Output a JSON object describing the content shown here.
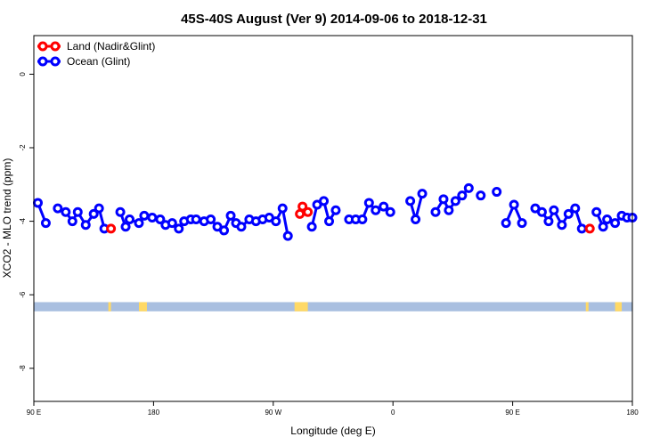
{
  "chart_data": {
    "type": "line",
    "title": "45S-40S August (Ver 9)   2014-09-06 to 2018-12-31",
    "xlabel": "Longitude (deg E)",
    "ylabel": "XCO2 - MLO trend (ppm)",
    "xlim": [
      0,
      450
    ],
    "ylim": [
      -8.9,
      1.05
    ],
    "x_ticks": [
      {
        "value": 0,
        "label": "90 E"
      },
      {
        "value": 90,
        "label": "180"
      },
      {
        "value": 180,
        "label": "90 W"
      },
      {
        "value": 270,
        "label": "0"
      },
      {
        "value": 360,
        "label": "90 E"
      },
      {
        "value": 450,
        "label": "180"
      }
    ],
    "y_ticks": [
      {
        "value": 0,
        "label": "0"
      },
      {
        "value": -2,
        "label": "-2"
      },
      {
        "value": -4,
        "label": "-4"
      },
      {
        "value": -6,
        "label": "-6"
      },
      {
        "value": -8,
        "label": "-8"
      }
    ],
    "legend": {
      "position": "top-left"
    },
    "colors": {
      "land": "#ff0000",
      "ocean": "#0000ff",
      "ocean_band": "#a9bfe0",
      "land_band": "#ffd966"
    },
    "surface_band": {
      "y_top": -6.2,
      "y_bottom": -6.45
    },
    "land_band_segments": [
      [
        56,
        58
      ],
      [
        79,
        85
      ],
      [
        196,
        206
      ],
      [
        415,
        417
      ],
      [
        437,
        442
      ]
    ],
    "series": [
      {
        "name": "Land (Nadir&Glint)",
        "key": "land",
        "segments": [
          [
            [
              58,
              -4.2
            ]
          ],
          [
            [
              200,
              -3.8
            ],
            [
              202,
              -3.6
            ],
            [
              206,
              -3.75
            ]
          ],
          [
            [
              418,
              -4.2
            ]
          ]
        ]
      },
      {
        "name": "Ocean (Glint)",
        "key": "ocean",
        "segments": [
          [
            [
              3,
              -3.5
            ],
            [
              9,
              -4.05
            ]
          ],
          [
            [
              18,
              -3.65
            ],
            [
              24,
              -3.75
            ],
            [
              29,
              -4.0
            ],
            [
              33,
              -3.75
            ],
            [
              39,
              -4.1
            ],
            [
              45,
              -3.8
            ],
            [
              49,
              -3.65
            ],
            [
              53,
              -4.2
            ]
          ],
          [
            [
              65,
              -3.75
            ],
            [
              69,
              -4.15
            ],
            [
              72,
              -3.95
            ],
            [
              79,
              -4.05
            ],
            [
              83,
              -3.85
            ],
            [
              89,
              -3.9
            ],
            [
              95,
              -3.95
            ],
            [
              99,
              -4.1
            ],
            [
              104,
              -4.05
            ],
            [
              109,
              -4.2
            ],
            [
              113,
              -4.0
            ],
            [
              118,
              -3.95
            ],
            [
              122,
              -3.95
            ],
            [
              128,
              -4.0
            ],
            [
              133,
              -3.95
            ],
            [
              138,
              -4.15
            ],
            [
              143,
              -4.25
            ],
            [
              148,
              -3.85
            ],
            [
              152,
              -4.05
            ],
            [
              156,
              -4.15
            ],
            [
              162,
              -3.95
            ],
            [
              167,
              -4.0
            ],
            [
              172,
              -3.95
            ],
            [
              177,
              -3.9
            ],
            [
              182,
              -4.0
            ],
            [
              187,
              -3.65
            ],
            [
              191,
              -4.4
            ]
          ],
          [
            [
              209,
              -4.15
            ],
            [
              213,
              -3.55
            ],
            [
              218,
              -3.45
            ],
            [
              222,
              -4.0
            ],
            [
              227,
              -3.7
            ]
          ],
          [
            [
              237,
              -3.95
            ],
            [
              242,
              -3.95
            ],
            [
              247,
              -3.95
            ],
            [
              252,
              -3.5
            ],
            [
              257,
              -3.7
            ],
            [
              263,
              -3.6
            ],
            [
              268,
              -3.75
            ]
          ],
          [
            [
              283,
              -3.45
            ],
            [
              287,
              -3.95
            ],
            [
              292,
              -3.25
            ]
          ],
          [
            [
              302,
              -3.75
            ],
            [
              308,
              -3.4
            ],
            [
              312,
              -3.7
            ],
            [
              317,
              -3.45
            ],
            [
              322,
              -3.3
            ],
            [
              327,
              -3.1
            ]
          ],
          [
            [
              336,
              -3.3
            ]
          ],
          [
            [
              348,
              -3.2
            ]
          ],
          [
            [
              355,
              -4.05
            ],
            [
              361,
              -3.55
            ],
            [
              367,
              -4.05
            ]
          ],
          [
            [
              377,
              -3.65
            ],
            [
              382,
              -3.75
            ],
            [
              387,
              -4.0
            ],
            [
              391,
              -3.7
            ],
            [
              397,
              -4.1
            ],
            [
              402,
              -3.8
            ],
            [
              407,
              -3.65
            ],
            [
              412,
              -4.2
            ]
          ],
          [
            [
              423,
              -3.75
            ],
            [
              428,
              -4.15
            ],
            [
              431,
              -3.95
            ],
            [
              437,
              -4.05
            ],
            [
              442,
              -3.85
            ],
            [
              446,
              -3.9
            ],
            [
              450,
              -3.9
            ]
          ]
        ]
      }
    ]
  }
}
